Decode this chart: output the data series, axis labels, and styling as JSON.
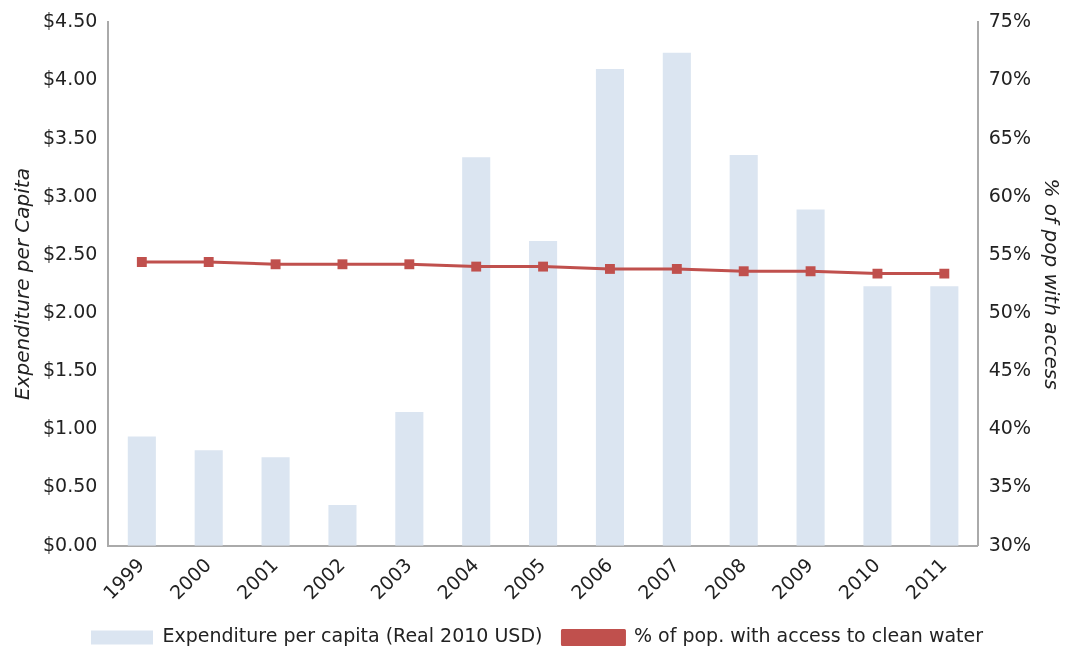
{
  "chart_data": {
    "type": "bar",
    "ylabel": "Expenditure per Capita",
    "y2label": "% of pop with access",
    "categories": [
      "1999",
      "2000",
      "2001",
      "2002",
      "2003",
      "2004",
      "2005",
      "2006",
      "2007",
      "2008",
      "2009",
      "2010",
      "2011"
    ],
    "series": [
      {
        "name": "Expenditure per capita (Real 2010 USD)",
        "color": "#dbe5f1",
        "values": [
          0.94,
          0.82,
          0.76,
          0.35,
          1.15,
          3.34,
          2.62,
          4.1,
          4.24,
          3.36,
          2.89,
          2.23,
          2.23
        ]
      },
      {
        "name": "% of pop. with access to clean water",
        "type": "line",
        "axis": "y2",
        "color": "#c0504d",
        "values": [
          54.4,
          54.4,
          54.2,
          54.2,
          54.2,
          54.0,
          54.0,
          53.8,
          53.8,
          53.6,
          53.6,
          53.4,
          53.4
        ]
      }
    ],
    "ylim": [
      0,
      4.5
    ],
    "yticks": [
      {
        "value": 0,
        "label": "$0.00"
      },
      {
        "value": 0.5,
        "label": "$0.50"
      },
      {
        "value": 1,
        "label": "$1.00"
      },
      {
        "value": 1.5,
        "label": "$1.50"
      },
      {
        "value": 2,
        "label": "$2.00"
      },
      {
        "value": 2.5,
        "label": "$2.50"
      },
      {
        "value": 3,
        "label": "$3.00"
      },
      {
        "value": 3.5,
        "label": "$3.50"
      },
      {
        "value": 4,
        "label": "$4.00"
      },
      {
        "value": 4.5,
        "label": "$4.50"
      }
    ],
    "y2lim": [
      30,
      75
    ],
    "y2ticks": [
      {
        "value": 30,
        "label": "30%"
      },
      {
        "value": 35,
        "label": "35%"
      },
      {
        "value": 40,
        "label": "40%"
      },
      {
        "value": 45,
        "label": "45%"
      },
      {
        "value": 50,
        "label": "50%"
      },
      {
        "value": 55,
        "label": "55%"
      },
      {
        "value": 60,
        "label": "60%"
      },
      {
        "value": 65,
        "label": "65%"
      },
      {
        "value": 70,
        "label": "70%"
      },
      {
        "value": 75,
        "label": "75%"
      }
    ],
    "grid": false,
    "legend": "bottom",
    "marker": "square",
    "line_style": "solid"
  }
}
